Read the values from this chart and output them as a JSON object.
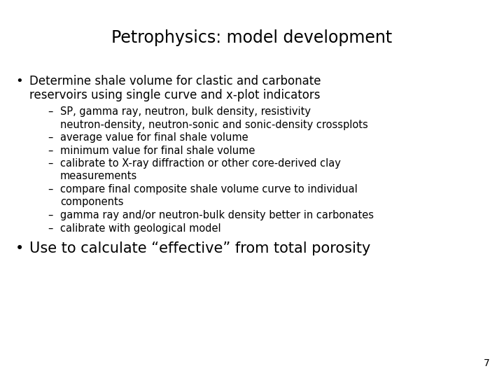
{
  "title": "Petrophysics: model development",
  "background_color": "#ffffff",
  "text_color": "#000000",
  "title_fontsize": 17,
  "body_fontsize": 12,
  "sub_fontsize": 10.5,
  "bullet2_fontsize": 15,
  "bullet1_line1": "Determine shale volume for clastic and carbonate",
  "bullet1_line2": "reservoirs using single curve and x-plot indicators",
  "sub_bullets": [
    "SP, gamma ray, neutron, bulk density, resistivity",
    "neutron-density, neutron-sonic and sonic-density crossplots",
    "average value for final shale volume",
    "minimum value for final shale volume",
    "calibrate to X-ray diffraction or other core-derived clay",
    "measurements",
    "compare final composite shale volume curve to individual",
    "components",
    "gamma ray and/or neutron-bulk density better in carbonates",
    "calibrate with geological model"
  ],
  "sub_bullet_flags": [
    true,
    false,
    true,
    true,
    true,
    false,
    true,
    false,
    true,
    true
  ],
  "bullet2": "Use to calculate “effective” from total porosity",
  "page_number": "7",
  "font_family": "DejaVu Sans"
}
